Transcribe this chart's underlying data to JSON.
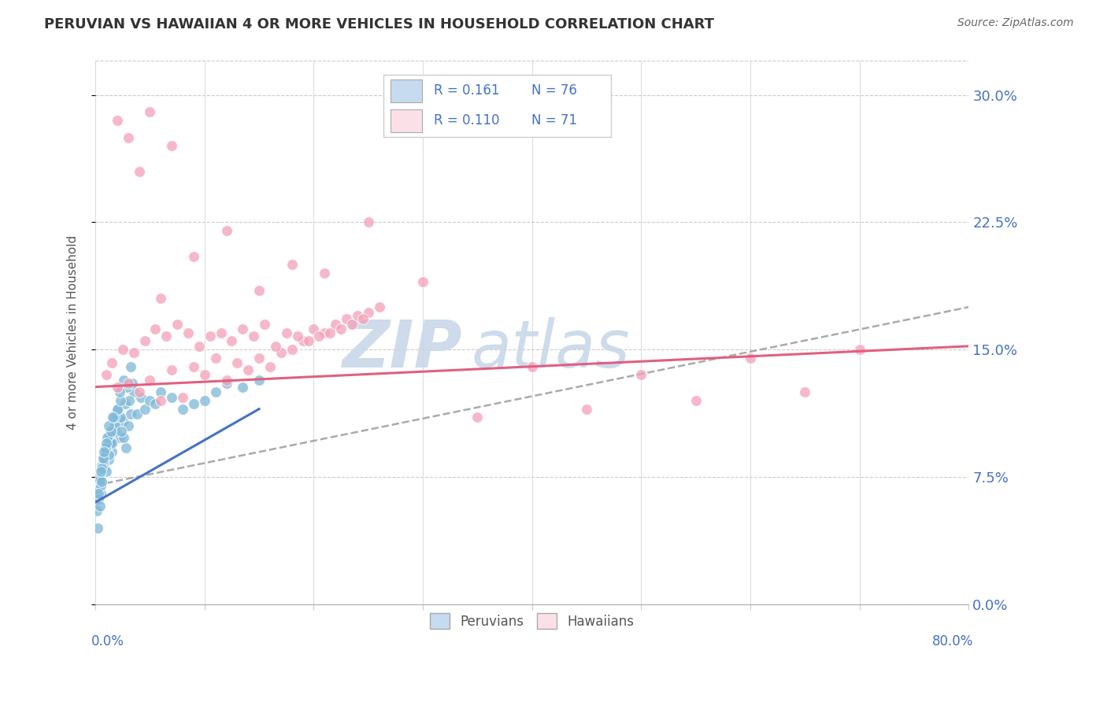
{
  "title": "PERUVIAN VS HAWAIIAN 4 OR MORE VEHICLES IN HOUSEHOLD CORRELATION CHART",
  "source": "Source: ZipAtlas.com",
  "ylabel": "4 or more Vehicles in Household",
  "yticks": [
    "0.0%",
    "7.5%",
    "15.0%",
    "22.5%",
    "30.0%"
  ],
  "ytick_vals": [
    0.0,
    7.5,
    15.0,
    22.5,
    30.0
  ],
  "xlim": [
    0.0,
    80.0
  ],
  "ylim": [
    0.0,
    32.0
  ],
  "legend_r_blue": "R = 0.161",
  "legend_n_blue": "N = 76",
  "legend_r_pink": "R = 0.110",
  "legend_n_pink": "N = 71",
  "blue_color": "#7db8d8",
  "blue_light": "#c6dbef",
  "pink_color": "#f4a0b8",
  "pink_light": "#fce0e8",
  "blue_line_color": "#4472c4",
  "pink_line_color": "#e06080",
  "gray_dash_color": "#aaaaaa",
  "watermark_color": "#c8d8e8",
  "background_color": "#ffffff",
  "peru_trend_x0": 0.0,
  "peru_trend_y0": 6.0,
  "peru_trend_x1": 15.0,
  "peru_trend_y1": 11.5,
  "haw_trend_x0": 0.0,
  "haw_trend_y0": 12.8,
  "haw_trend_x1": 80.0,
  "haw_trend_y1": 15.2,
  "gray_trend_x0": 0.0,
  "gray_trend_y0": 7.0,
  "gray_trend_x1": 80.0,
  "gray_trend_y1": 17.5,
  "peruvian_x": [
    0.3,
    0.5,
    0.8,
    1.0,
    1.2,
    1.5,
    0.4,
    0.6,
    0.9,
    1.1,
    1.3,
    1.6,
    1.8,
    2.0,
    2.2,
    2.5,
    0.2,
    0.7,
    1.4,
    1.9,
    2.8,
    3.0,
    3.2,
    2.3,
    2.6,
    3.5,
    0.1,
    0.3,
    0.5,
    0.8,
    1.0,
    1.2,
    1.5,
    0.6,
    0.9,
    1.3,
    0.4,
    0.7,
    1.1,
    1.8,
    2.1,
    2.4,
    2.7,
    3.1,
    3.8,
    4.2,
    0.2,
    0.4,
    0.6,
    1.0,
    1.4,
    1.7,
    2.0,
    2.3,
    2.9,
    3.4,
    0.3,
    0.5,
    0.8,
    1.2,
    1.6,
    2.2,
    2.6,
    3.2,
    4.5,
    5.0,
    5.5,
    6.0,
    7.0,
    8.0,
    9.0,
    10.0,
    11.0,
    12.0,
    13.5,
    15.0
  ],
  "peruvian_y": [
    7.2,
    6.5,
    8.0,
    7.8,
    8.5,
    9.0,
    7.5,
    8.2,
    8.8,
    9.2,
    9.5,
    10.0,
    10.5,
    11.0,
    9.8,
    10.8,
    6.8,
    8.3,
    9.6,
    10.2,
    9.2,
    10.5,
    11.2,
    11.0,
    9.8,
    12.5,
    5.5,
    6.2,
    7.0,
    8.5,
    9.0,
    8.8,
    9.5,
    8.0,
    9.2,
    10.0,
    7.3,
    8.6,
    9.8,
    10.5,
    11.5,
    10.2,
    11.8,
    12.0,
    11.2,
    12.2,
    4.5,
    5.8,
    7.2,
    9.5,
    10.2,
    11.0,
    11.5,
    12.0,
    12.8,
    13.0,
    6.5,
    7.8,
    9.0,
    10.5,
    11.0,
    12.5,
    13.2,
    14.0,
    11.5,
    12.0,
    11.8,
    12.5,
    12.2,
    11.5,
    11.8,
    12.0,
    12.5,
    13.0,
    12.8,
    13.2
  ],
  "hawaiian_x": [
    1.0,
    2.0,
    1.5,
    3.0,
    2.5,
    4.0,
    3.5,
    5.0,
    4.5,
    6.0,
    5.5,
    7.0,
    6.5,
    8.0,
    7.5,
    9.0,
    8.5,
    10.0,
    9.5,
    11.0,
    10.5,
    12.0,
    11.5,
    13.0,
    12.5,
    14.0,
    13.5,
    15.0,
    14.5,
    16.0,
    15.5,
    17.0,
    16.5,
    18.0,
    17.5,
    19.0,
    18.5,
    20.0,
    19.5,
    21.0,
    20.5,
    22.0,
    21.5,
    23.0,
    22.5,
    24.0,
    23.5,
    25.0,
    24.5,
    26.0,
    3.0,
    5.0,
    7.0,
    9.0,
    12.0,
    15.0,
    18.0,
    21.0,
    25.0,
    30.0,
    35.0,
    40.0,
    45.0,
    50.0,
    55.0,
    60.0,
    65.0,
    70.0,
    2.0,
    4.0,
    6.0
  ],
  "hawaiian_y": [
    13.5,
    12.8,
    14.2,
    13.0,
    15.0,
    12.5,
    14.8,
    13.2,
    15.5,
    12.0,
    16.2,
    13.8,
    15.8,
    12.2,
    16.5,
    14.0,
    16.0,
    13.5,
    15.2,
    14.5,
    15.8,
    13.2,
    16.0,
    14.2,
    15.5,
    13.8,
    16.2,
    14.5,
    15.8,
    14.0,
    16.5,
    14.8,
    15.2,
    15.0,
    16.0,
    15.5,
    15.8,
    16.2,
    15.5,
    16.0,
    15.8,
    16.5,
    16.0,
    16.8,
    16.2,
    17.0,
    16.5,
    17.2,
    16.8,
    17.5,
    27.5,
    29.0,
    27.0,
    20.5,
    22.0,
    18.5,
    20.0,
    19.5,
    22.5,
    19.0,
    11.0,
    14.0,
    11.5,
    13.5,
    12.0,
    14.5,
    12.5,
    15.0,
    28.5,
    25.5,
    18.0
  ]
}
